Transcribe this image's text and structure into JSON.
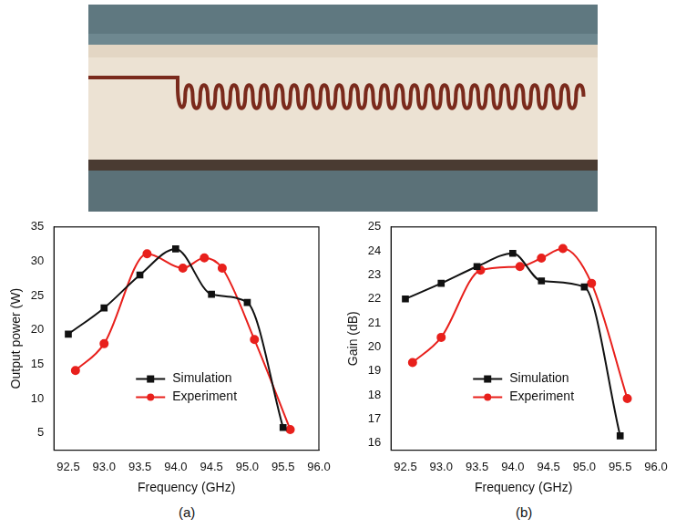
{
  "chart_data": [
    {
      "type": "line",
      "caption": "(a)",
      "x_label": "Frequency (GHz)",
      "y_label": "Output power (W)",
      "xlim": [
        92.3,
        96.0
      ],
      "xticks": [
        {
          "value": 92.5,
          "label": "92.5"
        },
        {
          "value": 93,
          "label": "93.0"
        },
        {
          "value": 93.5,
          "label": "93.5"
        },
        {
          "value": 94,
          "label": "94.0"
        },
        {
          "value": 94.5,
          "label": "94.5"
        },
        {
          "value": 95,
          "label": "95.0"
        },
        {
          "value": 95.5,
          "label": "95.5"
        },
        {
          "value": 96,
          "label": "96.0"
        }
      ],
      "ylim": [
        2.5,
        35
      ],
      "yticks": [
        5,
        10,
        15,
        20,
        25,
        30,
        35
      ],
      "grid": false,
      "legend": "lower center",
      "series": [
        {
          "name": "Simulation",
          "color": "#111111",
          "marker": "square",
          "line_style": "solid",
          "x": [
            92.5,
            93.0,
            93.5,
            94.0,
            94.5,
            95.0,
            95.5
          ],
          "values": [
            19.4,
            23.2,
            28.0,
            31.8,
            25.2,
            24.0,
            5.8
          ]
        },
        {
          "name": "Experiment",
          "color": "#e8201c",
          "marker": "circle",
          "line_style": "solid",
          "x": [
            92.6,
            93.0,
            93.6,
            94.1,
            94.4,
            94.65,
            95.1,
            95.6
          ],
          "values": [
            14.1,
            18.0,
            31.1,
            29.0,
            30.5,
            29.0,
            18.6,
            5.5
          ]
        }
      ]
    },
    {
      "type": "line",
      "caption": "(b)",
      "x_label": "Frequency (GHz)",
      "y_label": "Gain (dB)",
      "xlim": [
        92.3,
        96.0
      ],
      "xticks": [
        {
          "value": 92.5,
          "label": "92.5"
        },
        {
          "value": 93,
          "label": "93.0"
        },
        {
          "value": 93.5,
          "label": "93.5"
        },
        {
          "value": 94,
          "label": "94.0"
        },
        {
          "value": 94.5,
          "label": "94.5"
        },
        {
          "value": 95,
          "label": "95.0"
        },
        {
          "value": 95.5,
          "label": "95.5"
        },
        {
          "value": 96,
          "label": "96.0"
        }
      ],
      "ylim": [
        15.7,
        25
      ],
      "yticks": [
        16,
        17,
        18,
        19,
        20,
        21,
        22,
        23,
        24,
        25
      ],
      "grid": false,
      "legend": "lower center",
      "series": [
        {
          "name": "Simulation",
          "color": "#111111",
          "marker": "square",
          "line_style": "solid",
          "x": [
            92.5,
            93.0,
            93.5,
            94.0,
            94.4,
            95.0,
            95.5
          ],
          "values": [
            22.0,
            22.65,
            23.35,
            23.9,
            22.75,
            22.5,
            16.3
          ]
        },
        {
          "name": "Experiment",
          "color": "#e8201c",
          "marker": "circle",
          "line_style": "solid",
          "x": [
            92.6,
            93.0,
            93.55,
            94.1,
            94.4,
            94.7,
            95.1,
            95.6
          ],
          "values": [
            19.35,
            20.4,
            23.2,
            23.35,
            23.7,
            24.1,
            22.65,
            17.85
          ]
        }
      ]
    }
  ]
}
